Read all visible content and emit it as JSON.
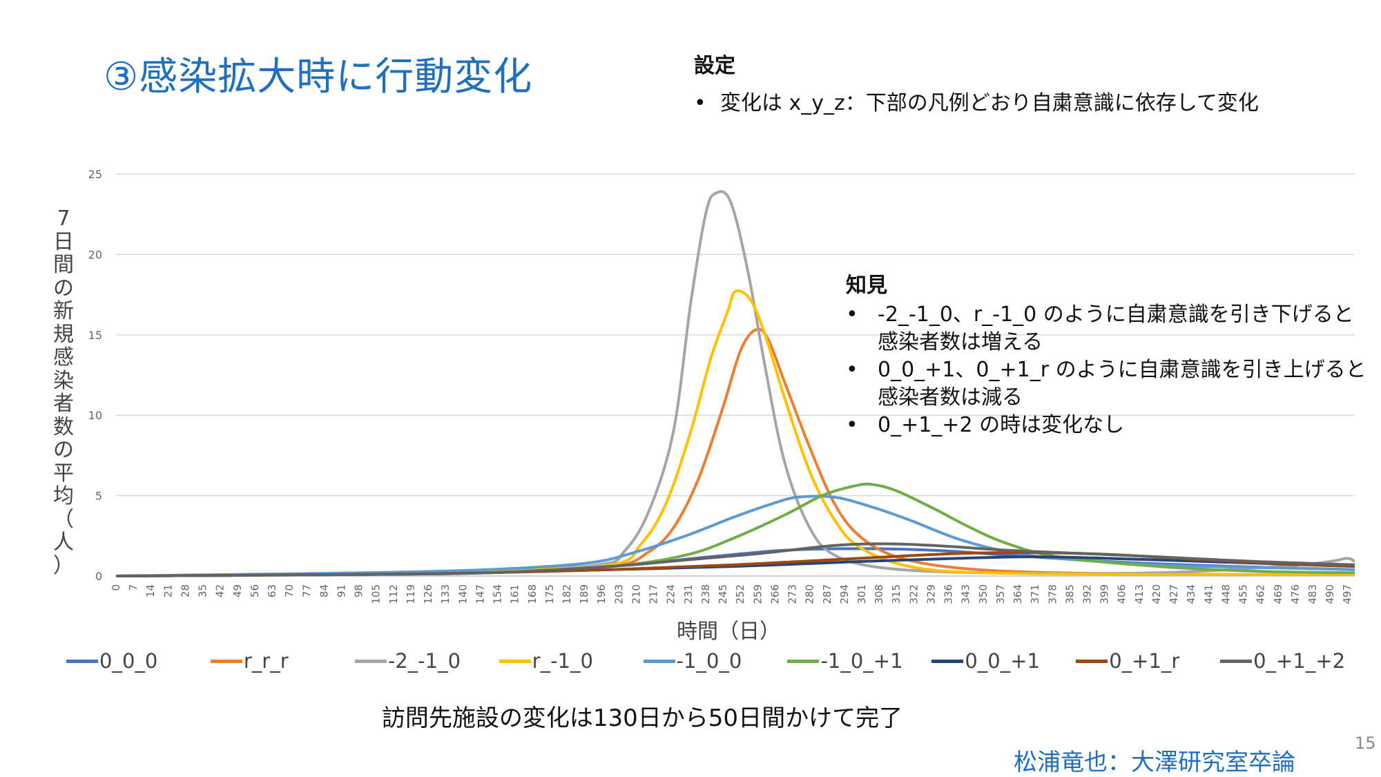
{
  "slide": {
    "title": "③感染拡大時に行動変化",
    "settings_heading": "設定",
    "settings_bullet": "•",
    "settings_text": "変化は x_y_z：下部の凡例どおり自粛意識に依存して変化",
    "findings_heading": "知見",
    "findings": [
      "-2_-1_0、r_-1_0 のように自粛意識を引き下げると感染者数は増える",
      "0_0_+1、0_+1_r のように自粛意識を引き上げると感染者数は減る",
      "0_+1_+2 の時は変化なし"
    ],
    "caption": "訪問先施設の変化は130日から50日間かけて完了",
    "credit": "松浦竜也：大澤研究室卒論",
    "page_number": "15"
  },
  "chart_data": {
    "type": "line",
    "xlabel": "時間（日）",
    "ylabel": "7日間の新規感染者数の平均（人）",
    "xlim": [
      0,
      500
    ],
    "ylim": [
      0,
      25
    ],
    "y_ticks": [
      "0",
      "5",
      "10",
      "15",
      "20",
      "25"
    ],
    "x_tick_step": 7,
    "x_tick_max": 497,
    "grid": "horizontal",
    "legend_position": "bottom",
    "series": [
      {
        "name": "0_0_0",
        "color": "#4472c4",
        "points": [
          [
            0,
            0
          ],
          [
            100,
            0.1
          ],
          [
            150,
            0.3
          ],
          [
            200,
            0.6
          ],
          [
            240,
            1.2
          ],
          [
            270,
            1.6
          ],
          [
            300,
            1.7
          ],
          [
            330,
            1.6
          ],
          [
            360,
            1.3
          ],
          [
            400,
            0.9
          ],
          [
            450,
            0.6
          ],
          [
            500,
            0.4
          ]
        ]
      },
      {
        "name": "r_r_r",
        "color": "#ed7d31",
        "points": [
          [
            0,
            0
          ],
          [
            100,
            0.1
          ],
          [
            150,
            0.2
          ],
          [
            200,
            0.6
          ],
          [
            215,
            1.5
          ],
          [
            225,
            3
          ],
          [
            235,
            6
          ],
          [
            245,
            10.5
          ],
          [
            252,
            14
          ],
          [
            258,
            15.3
          ],
          [
            263,
            14.8
          ],
          [
            270,
            12
          ],
          [
            280,
            8
          ],
          [
            290,
            4.5
          ],
          [
            300,
            2.5
          ],
          [
            315,
            1.2
          ],
          [
            340,
            0.5
          ],
          [
            380,
            0.2
          ],
          [
            450,
            0.1
          ],
          [
            500,
            0.1
          ]
        ]
      },
      {
        "name": "-2_-1_0",
        "color": "#a5a5a5",
        "points": [
          [
            0,
            0
          ],
          [
            100,
            0.1
          ],
          [
            150,
            0.3
          ],
          [
            195,
            0.7
          ],
          [
            205,
            1.5
          ],
          [
            215,
            4
          ],
          [
            225,
            9
          ],
          [
            232,
            17
          ],
          [
            238,
            22.5
          ],
          [
            242,
            23.8
          ],
          [
            248,
            23.3
          ],
          [
            255,
            19
          ],
          [
            262,
            13
          ],
          [
            270,
            7
          ],
          [
            280,
            3
          ],
          [
            290,
            1.3
          ],
          [
            310,
            0.5
          ],
          [
            350,
            0.2
          ],
          [
            420,
            0.2
          ],
          [
            470,
            0.6
          ],
          [
            490,
            0.9
          ],
          [
            497,
            1.1
          ],
          [
            500,
            0.9
          ]
        ]
      },
      {
        "name": "r_-1_0",
        "color": "#ffc000",
        "points": [
          [
            0,
            0
          ],
          [
            100,
            0.1
          ],
          [
            150,
            0.3
          ],
          [
            200,
            0.7
          ],
          [
            212,
            2
          ],
          [
            222,
            4.5
          ],
          [
            232,
            9
          ],
          [
            240,
            13.5
          ],
          [
            247,
            16.5
          ],
          [
            250,
            17.7
          ],
          [
            256,
            17.2
          ],
          [
            262,
            15
          ],
          [
            270,
            11
          ],
          [
            280,
            6.5
          ],
          [
            290,
            3.5
          ],
          [
            300,
            1.8
          ],
          [
            320,
            0.6
          ],
          [
            350,
            0.2
          ],
          [
            420,
            0.1
          ],
          [
            500,
            0.1
          ]
        ]
      },
      {
        "name": "-1_0_0",
        "color": "#5b9bd5",
        "points": [
          [
            0,
            0
          ],
          [
            50,
            0.1
          ],
          [
            100,
            0.2
          ],
          [
            150,
            0.4
          ],
          [
            190,
            0.8
          ],
          [
            210,
            1.5
          ],
          [
            230,
            2.5
          ],
          [
            250,
            3.7
          ],
          [
            265,
            4.5
          ],
          [
            275,
            4.9
          ],
          [
            290,
            4.9
          ],
          [
            305,
            4.3
          ],
          [
            320,
            3.5
          ],
          [
            340,
            2.3
          ],
          [
            360,
            1.5
          ],
          [
            380,
            1.1
          ],
          [
            420,
            0.7
          ],
          [
            470,
            0.5
          ],
          [
            500,
            0.4
          ]
        ]
      },
      {
        "name": "-1_0_+1",
        "color": "#70ad47",
        "points": [
          [
            0,
            0
          ],
          [
            100,
            0.1
          ],
          [
            150,
            0.2
          ],
          [
            200,
            0.6
          ],
          [
            230,
            1.3
          ],
          [
            250,
            2.4
          ],
          [
            270,
            3.8
          ],
          [
            285,
            5
          ],
          [
            298,
            5.6
          ],
          [
            305,
            5.7
          ],
          [
            315,
            5.3
          ],
          [
            330,
            4.2
          ],
          [
            345,
            3
          ],
          [
            360,
            2
          ],
          [
            380,
            1.2
          ],
          [
            420,
            0.6
          ],
          [
            460,
            0.3
          ],
          [
            500,
            0.2
          ]
        ]
      },
      {
        "name": "0_0_+1",
        "color": "#264478",
        "points": [
          [
            0,
            0
          ],
          [
            100,
            0.1
          ],
          [
            150,
            0.2
          ],
          [
            200,
            0.4
          ],
          [
            250,
            0.6
          ],
          [
            300,
            0.9
          ],
          [
            340,
            1.1
          ],
          [
            370,
            1.2
          ],
          [
            400,
            1.1
          ],
          [
            440,
            0.9
          ],
          [
            480,
            0.7
          ],
          [
            500,
            0.6
          ]
        ]
      },
      {
        "name": "0_+1_r",
        "color": "#9e480e",
        "points": [
          [
            0,
            0
          ],
          [
            100,
            0.1
          ],
          [
            150,
            0.2
          ],
          [
            200,
            0.4
          ],
          [
            250,
            0.7
          ],
          [
            300,
            1.1
          ],
          [
            340,
            1.4
          ],
          [
            370,
            1.45
          ],
          [
            400,
            1.35
          ],
          [
            440,
            1
          ],
          [
            480,
            0.7
          ],
          [
            500,
            0.6
          ]
        ]
      },
      {
        "name": "0_+1_+2",
        "color": "#636363",
        "points": [
          [
            0,
            0
          ],
          [
            100,
            0.1
          ],
          [
            150,
            0.2
          ],
          [
            200,
            0.6
          ],
          [
            230,
            1
          ],
          [
            260,
            1.4
          ],
          [
            290,
            1.9
          ],
          [
            310,
            2
          ],
          [
            330,
            1.9
          ],
          [
            360,
            1.6
          ],
          [
            390,
            1.4
          ],
          [
            420,
            1.2
          ],
          [
            460,
            0.9
          ],
          [
            500,
            0.7
          ]
        ]
      }
    ]
  }
}
